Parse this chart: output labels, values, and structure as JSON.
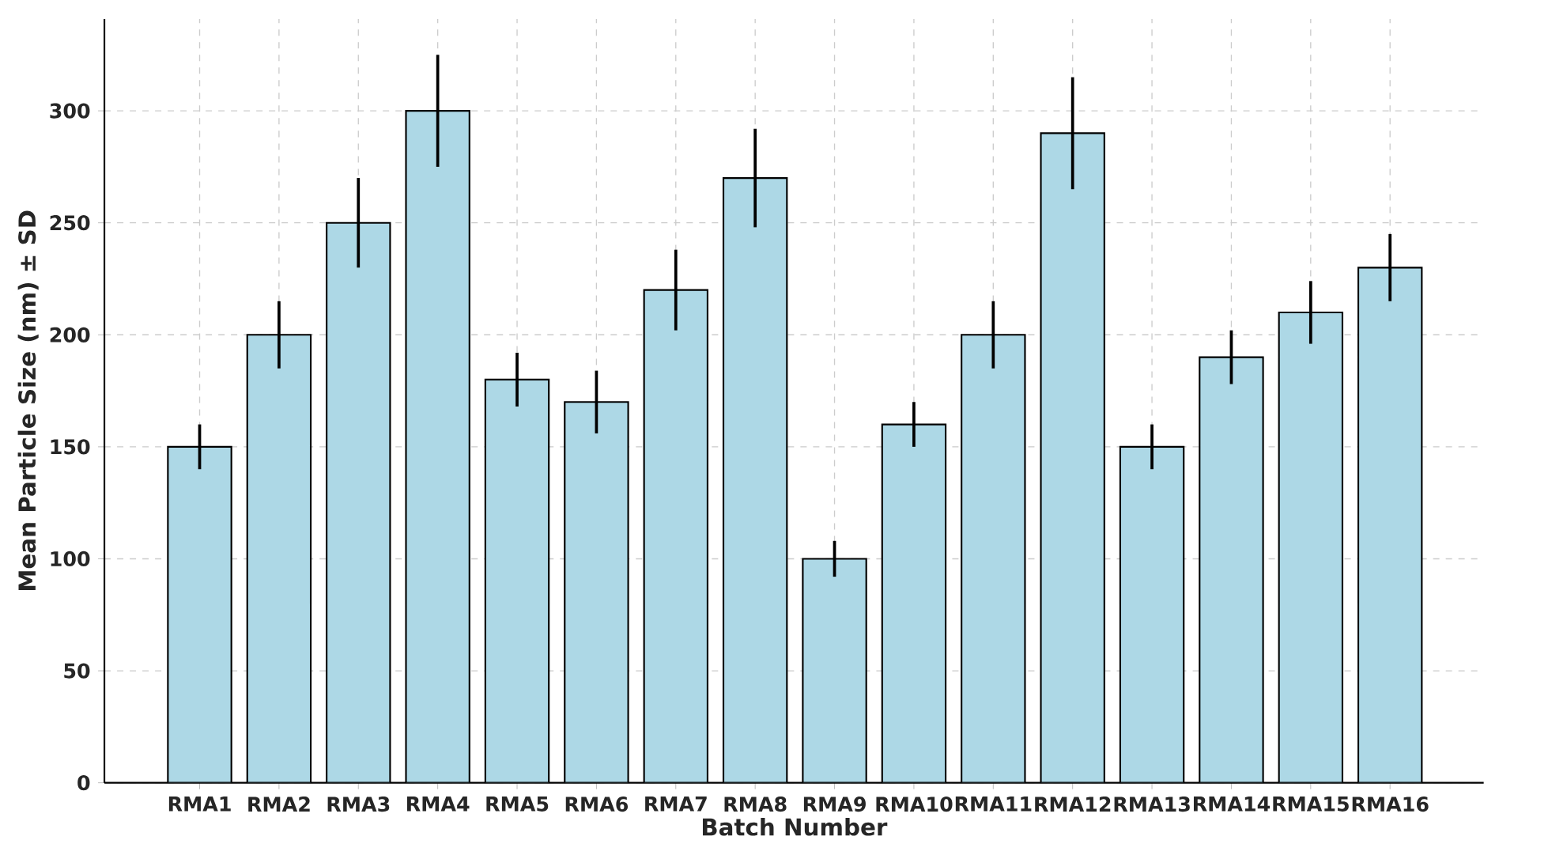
{
  "chart_data": {
    "type": "bar",
    "xlabel": "Batch Number",
    "ylabel": "Mean Particle Size (nm) ± SD",
    "categories": [
      "RMA1",
      "RMA2",
      "RMA3",
      "RMA4",
      "RMA5",
      "RMA6",
      "RMA7",
      "RMA8",
      "RMA9",
      "RMA10",
      "RMA11",
      "RMA12",
      "RMA13",
      "RMA14",
      "RMA15",
      "RMA16"
    ],
    "values": [
      150,
      200,
      250,
      300,
      180,
      170,
      220,
      270,
      100,
      160,
      200,
      290,
      150,
      190,
      210,
      230
    ],
    "errors": [
      10,
      15,
      20,
      25,
      12,
      14,
      18,
      22,
      8,
      10,
      15,
      25,
      10,
      12,
      14,
      15
    ],
    "color": "#add8e6",
    "ylim": [
      0,
      341
    ],
    "yticks": [
      0,
      50,
      100,
      150,
      200,
      250,
      300
    ],
    "grid": true
  }
}
